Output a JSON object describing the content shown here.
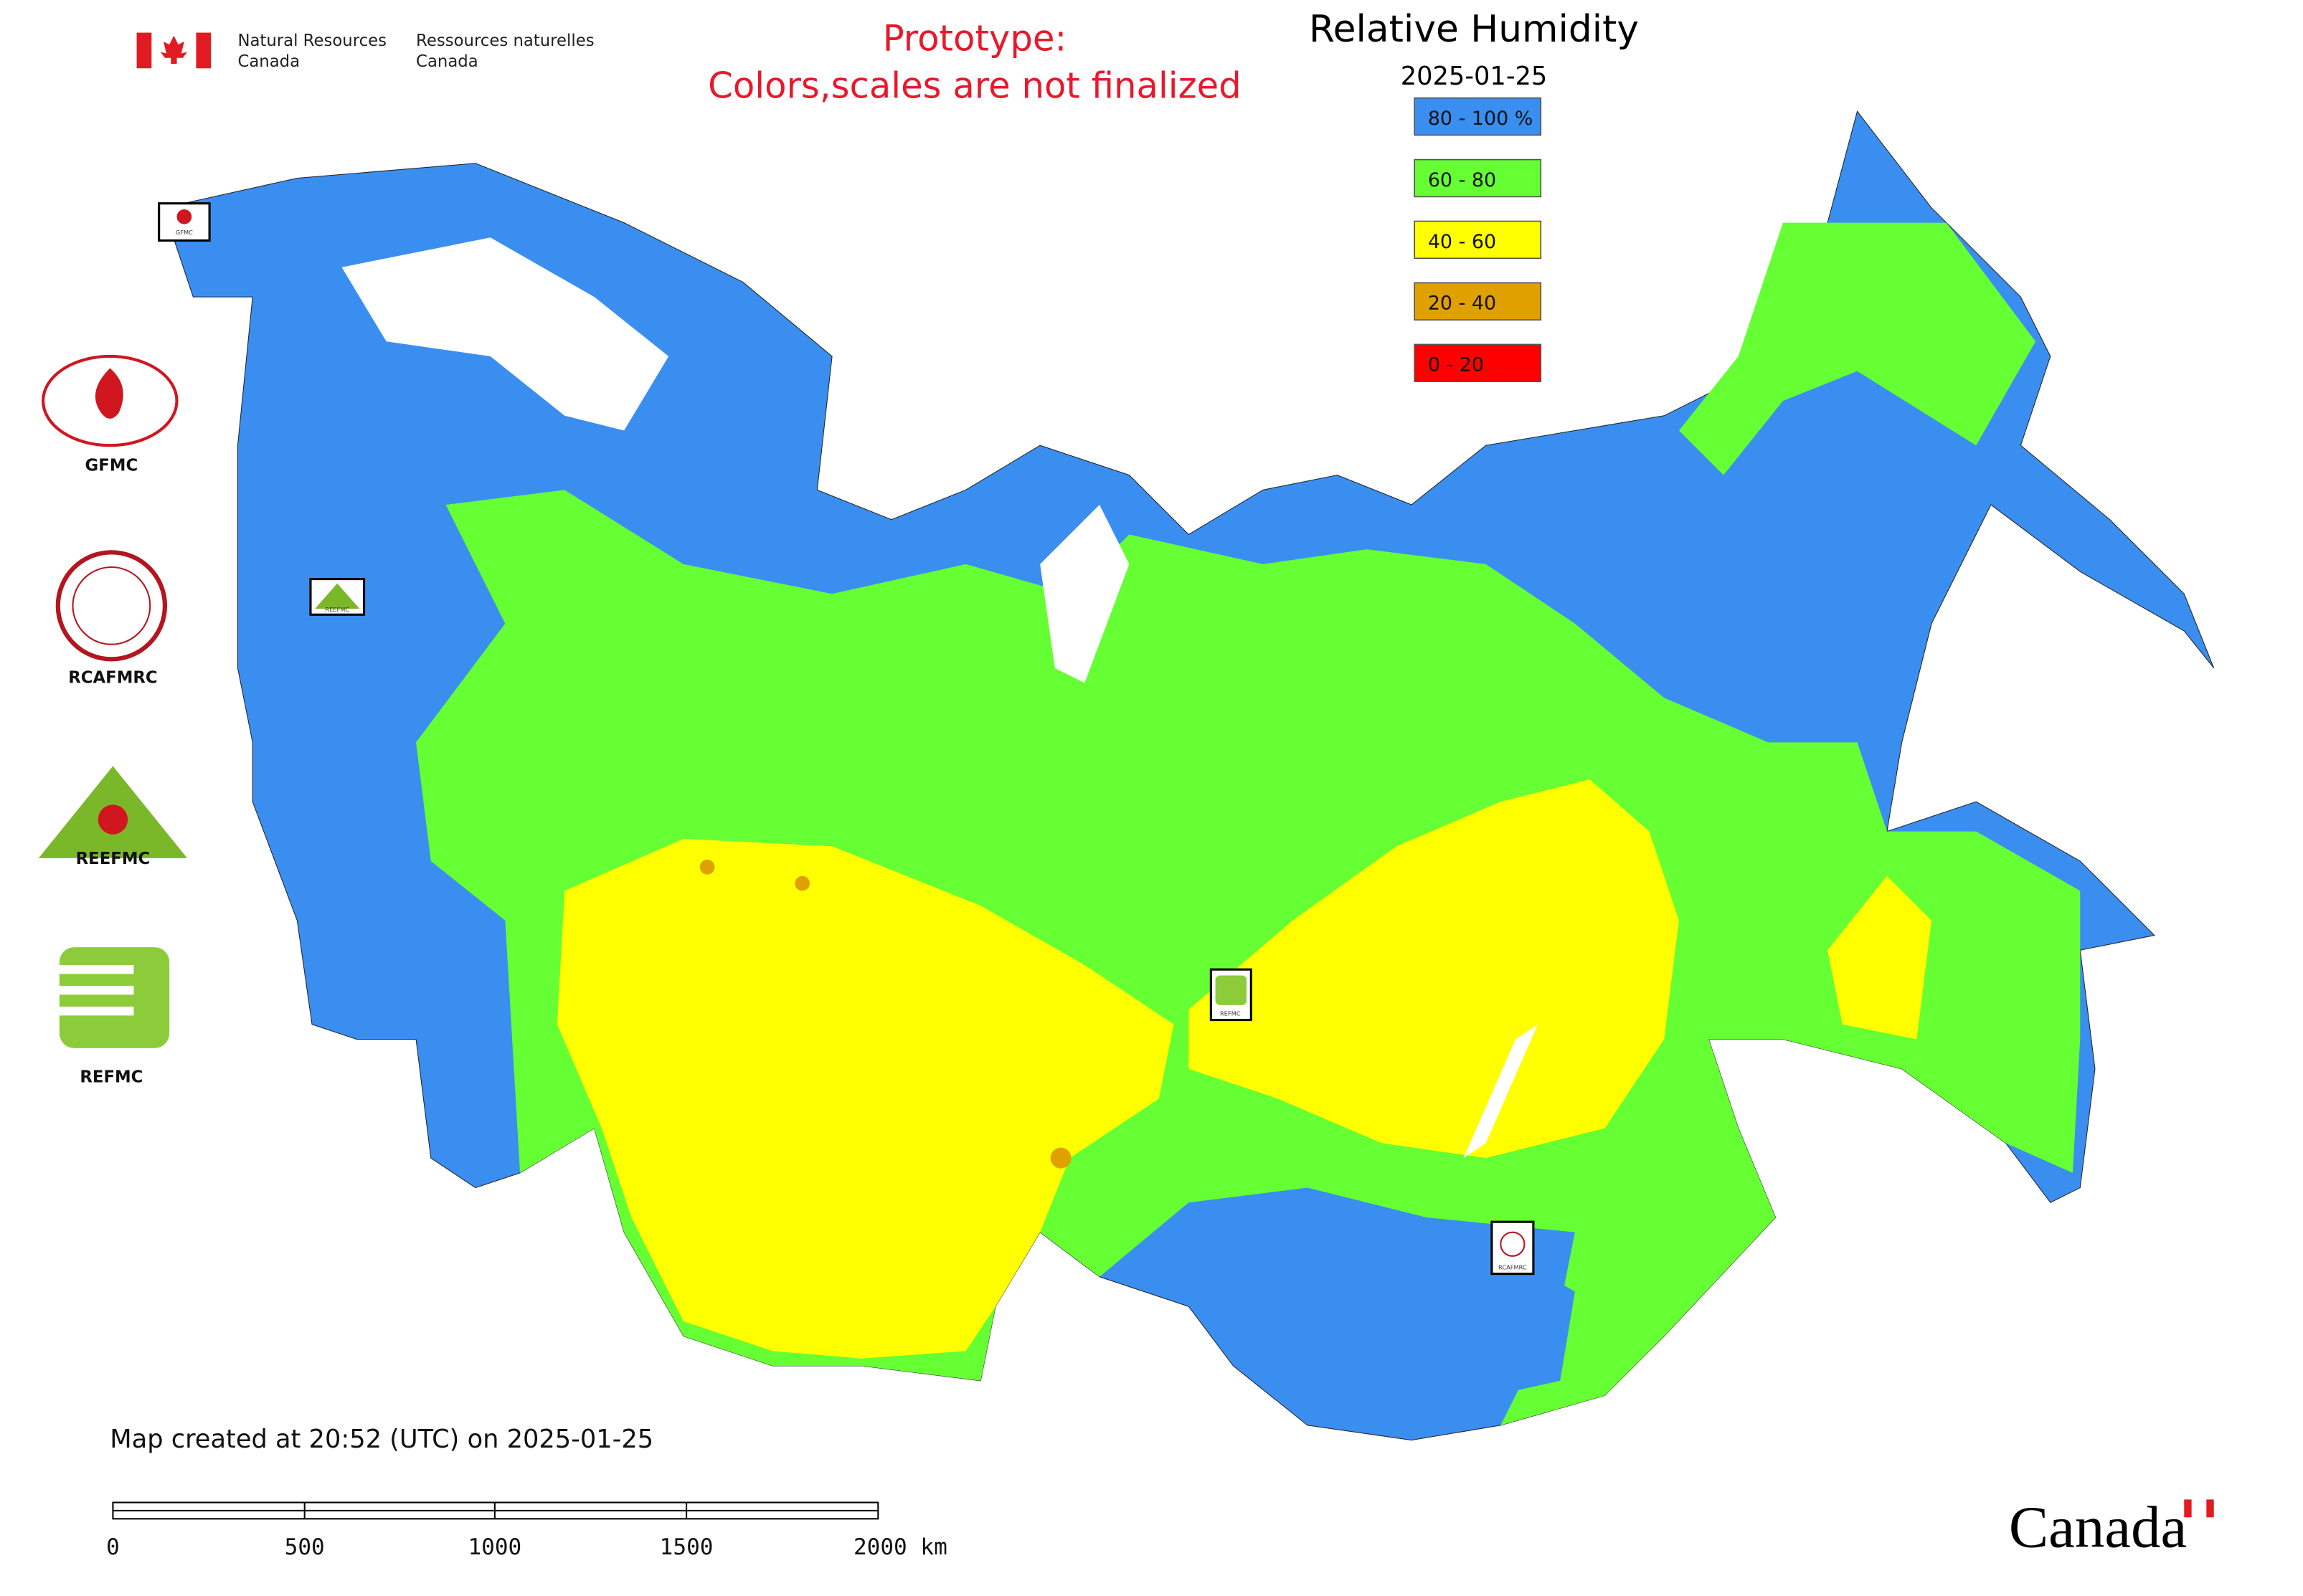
{
  "header": {
    "agency_en": [
      "Natural Resources",
      "Canada"
    ],
    "agency_fr": [
      "Ressources naturelles",
      "Canada"
    ],
    "notice": [
      "Prototype:",
      "Colors,scales are not finalized"
    ],
    "title": "Relative Humidity",
    "date": "2025-01-25"
  },
  "legend": [
    {
      "label": "80 - 100 %",
      "color": "#3a8ef0"
    },
    {
      "label": "60 - 80",
      "color": "#66ff33"
    },
    {
      "label": "40 - 60",
      "color": "#ffff00"
    },
    {
      "label": "20 - 40",
      "color": "#e0a000"
    },
    {
      "label": "0 - 20",
      "color": "#ff0000"
    }
  ],
  "logos": [
    "GFMC",
    "RCAFMRC",
    "REEFMC",
    "REFMC"
  ],
  "map_markers": [
    "GFMC",
    "REEFMC",
    "REFMC",
    "RCAFMRC"
  ],
  "footer": {
    "created": "Map created at 20:52 (UTC) on 2025-01-25",
    "scale_labels": [
      "0",
      "500",
      "1000",
      "1500",
      "2000 km"
    ],
    "wordmark": "Canada"
  }
}
